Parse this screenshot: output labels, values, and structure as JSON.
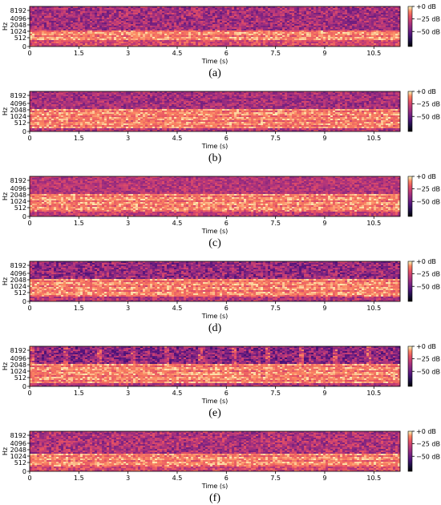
{
  "chart_data": [
    {
      "type": "heatmap",
      "caption": "(a)",
      "xlabel": "Time (s)",
      "ylabel": "Hz",
      "xlim": [
        0,
        11.3
      ],
      "x_ticks": [
        "0",
        "1.5",
        "3",
        "4.5",
        "6",
        "7.5",
        "9",
        "10.5"
      ],
      "y_scale": "log",
      "y_ticks": [
        "0",
        "512",
        "1024",
        "2048",
        "4096",
        "8192"
      ],
      "colorbar": {
        "ticks": [
          "+0 dB",
          "−25 dB",
          "−50 dB"
        ],
        "range_db": [
          -80,
          0
        ]
      },
      "colormap": "magma"
    },
    {
      "type": "heatmap",
      "caption": "(b)",
      "xlabel": "Time (s)",
      "ylabel": "Hz",
      "xlim": [
        0,
        11.3
      ],
      "x_ticks": [
        "0",
        "1.5",
        "3",
        "4.5",
        "6",
        "7.5",
        "9",
        "10.5"
      ],
      "y_scale": "log",
      "y_ticks": [
        "0",
        "512",
        "1024",
        "2048",
        "4096",
        "8192"
      ],
      "colorbar": {
        "ticks": [
          "+0 dB",
          "−25 dB",
          "−50 dB"
        ],
        "range_db": [
          -80,
          0
        ]
      },
      "colormap": "magma"
    },
    {
      "type": "heatmap",
      "caption": "(c)",
      "xlabel": "Time (s)",
      "ylabel": "Hz",
      "xlim": [
        0,
        11.3
      ],
      "x_ticks": [
        "0",
        "1.5",
        "3",
        "4.5",
        "6",
        "7.5",
        "9",
        "10.5"
      ],
      "y_scale": "log",
      "y_ticks": [
        "0",
        "512",
        "1024",
        "2048",
        "4096",
        "8192"
      ],
      "colorbar": {
        "ticks": [
          "+0 dB",
          "−25 dB",
          "−50 dB"
        ],
        "range_db": [
          -80,
          0
        ]
      },
      "colormap": "magma"
    },
    {
      "type": "heatmap",
      "caption": "(d)",
      "xlabel": "Time (s)",
      "ylabel": "Hz",
      "xlim": [
        0,
        11.3
      ],
      "x_ticks": [
        "0",
        "1.5",
        "3",
        "4.5",
        "6",
        "7.5",
        "9",
        "10.5"
      ],
      "y_scale": "log",
      "y_ticks": [
        "0",
        "512",
        "1024",
        "2048",
        "4096",
        "8192"
      ],
      "colorbar": {
        "ticks": [
          "+0 dB",
          "−25 dB",
          "−50 dB"
        ],
        "range_db": [
          -80,
          0
        ]
      },
      "colormap": "magma"
    },
    {
      "type": "heatmap",
      "caption": "(e)",
      "xlabel": "Time (s)",
      "ylabel": "Hz",
      "xlim": [
        0,
        11.3
      ],
      "x_ticks": [
        "0",
        "1.5",
        "3",
        "4.5",
        "6",
        "7.5",
        "9",
        "10.5"
      ],
      "y_scale": "log",
      "y_ticks": [
        "0",
        "512",
        "1024",
        "2048",
        "4096",
        "8192"
      ],
      "colorbar": {
        "ticks": [
          "+0 dB",
          "−25 dB",
          "−50 dB"
        ],
        "range_db": [
          -80,
          0
        ]
      },
      "colormap": "magma"
    },
    {
      "type": "heatmap",
      "caption": "(f)",
      "xlabel": "Time (s)",
      "ylabel": "Hz",
      "xlim": [
        0,
        11.3
      ],
      "x_ticks": [
        "0",
        "1.5",
        "3",
        "4.5",
        "6",
        "7.5",
        "9",
        "10.5"
      ],
      "y_scale": "log",
      "y_ticks": [
        "0",
        "512",
        "1024",
        "2048",
        "4096",
        "8192"
      ],
      "colorbar": {
        "ticks": [
          "+0 dB",
          "−25 dB",
          "−50 dB"
        ],
        "range_db": [
          -80,
          0
        ]
      },
      "colormap": "magma"
    }
  ]
}
